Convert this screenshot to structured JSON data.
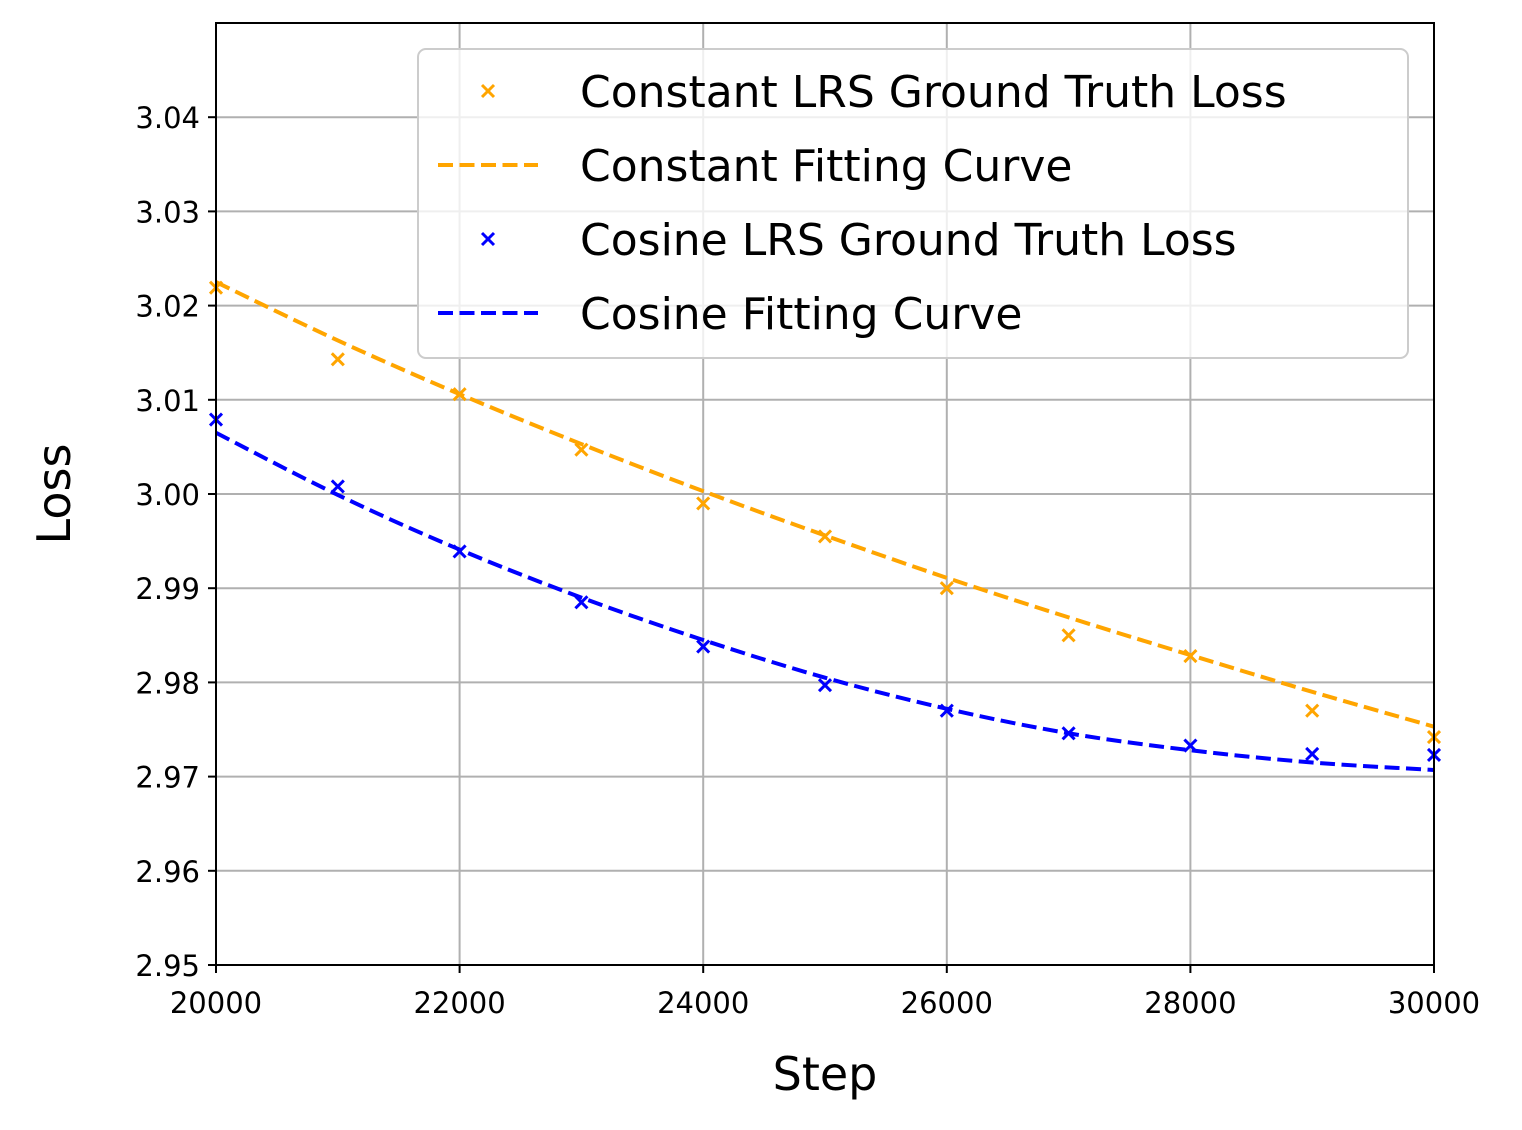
{
  "chart_data": {
    "type": "line",
    "title": "",
    "xlabel": "Step",
    "ylabel": "Loss",
    "xlim": [
      20000,
      30000
    ],
    "ylim": [
      2.95,
      3.05
    ],
    "grid": true,
    "legend_position": "top-right",
    "xticks": [
      20000,
      22000,
      24000,
      26000,
      28000,
      30000
    ],
    "yticks": [
      2.95,
      2.96,
      2.97,
      2.98,
      2.99,
      3.0,
      3.01,
      3.02,
      3.03,
      3.04
    ],
    "xtick_labels": [
      "20000",
      "22000",
      "24000",
      "26000",
      "28000",
      "30000"
    ],
    "ytick_labels": [
      "2.95",
      "2.96",
      "2.97",
      "2.98",
      "2.99",
      "3.00",
      "3.01",
      "3.02",
      "3.03",
      "3.04"
    ],
    "series": [
      {
        "name": "Constant LRS Ground Truth Loss",
        "kind": "scatter",
        "marker": "x",
        "color": "#FFA500",
        "x": [
          20000,
          21000,
          22000,
          23000,
          24000,
          25000,
          26000,
          27000,
          28000,
          29000,
          30000
        ],
        "y": [
          3.0219,
          3.0143,
          3.0106,
          3.0047,
          2.999,
          2.9955,
          2.99,
          2.985,
          2.9828,
          2.977,
          2.9742
        ]
      },
      {
        "name": "Constant Fitting Curve",
        "kind": "line",
        "dash": "dashed",
        "color": "#FFA500",
        "x": [
          20000,
          21000,
          22000,
          23000,
          24000,
          25000,
          26000,
          27000,
          28000,
          29000,
          30000
        ],
        "y": [
          3.0225,
          3.0163,
          3.0106,
          3.0053,
          3.0003,
          2.9956,
          2.9911,
          2.9869,
          2.9829,
          2.979,
          2.9753
        ]
      },
      {
        "name": "Cosine LRS Ground Truth Loss",
        "kind": "scatter",
        "marker": "x",
        "color": "#0000FF",
        "x": [
          20000,
          21000,
          22000,
          23000,
          24000,
          25000,
          26000,
          27000,
          28000,
          29000,
          30000
        ],
        "y": [
          3.0079,
          3.0008,
          2.9939,
          2.9885,
          2.9838,
          2.9797,
          2.977,
          2.9746,
          2.9733,
          2.9724,
          2.9723
        ]
      },
      {
        "name": "Cosine Fitting Curve",
        "kind": "line",
        "dash": "dashed",
        "color": "#0000FF",
        "x": [
          20000,
          21000,
          22000,
          23000,
          24000,
          25000,
          26000,
          27000,
          28000,
          29000,
          30000
        ],
        "y": [
          3.0065,
          2.9999,
          2.9941,
          2.989,
          2.9845,
          2.9805,
          2.9772,
          2.9746,
          2.9728,
          2.9715,
          2.9707
        ]
      }
    ]
  }
}
